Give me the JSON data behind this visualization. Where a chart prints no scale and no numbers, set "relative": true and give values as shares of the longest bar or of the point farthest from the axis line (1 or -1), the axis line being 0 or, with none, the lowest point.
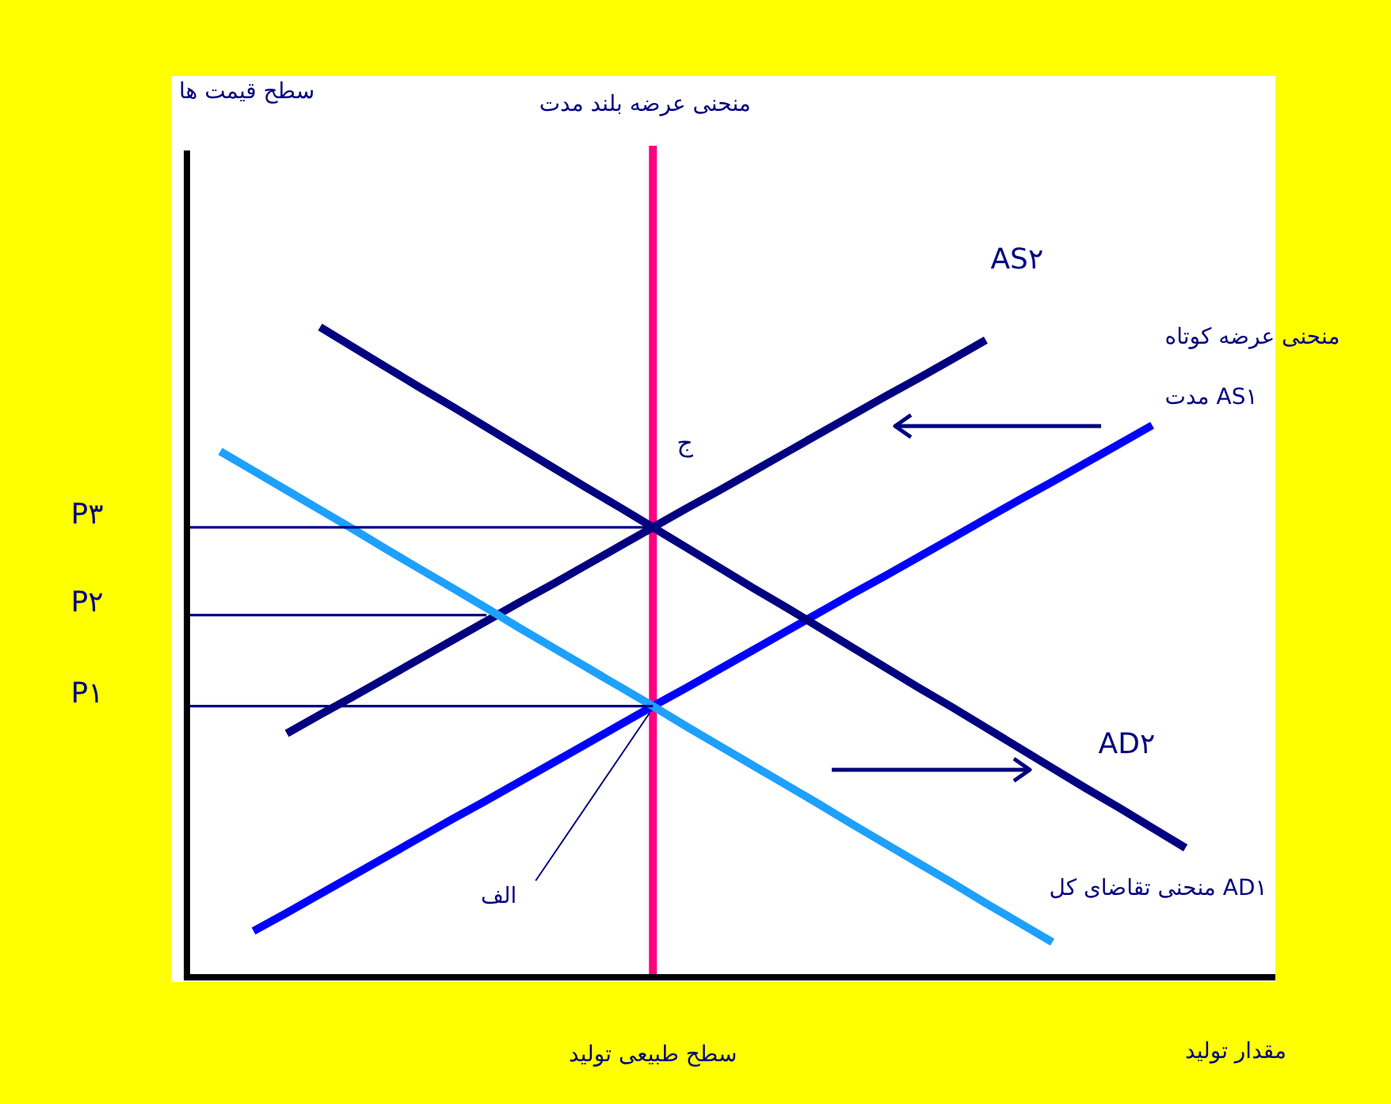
{
  "chart_data": {
    "type": "line",
    "relative": true,
    "xlabel": "مقدار تولید",
    "categories": [
      null,
      null,
      null,
      null,
      null,
      null,
      null,
      null,
      null,
      null,
      null,
      null,
      null,
      null,
      null,
      null,
      null,
      null,
      null,
      null,
      null,
      null,
      null,
      null,
      null,
      null,
      null,
      null,
      null,
      null,
      null,
      null,
      null
    ],
    "series": [
      {
        "name": "AS۲",
        "color": "#000080",
        "values": [
          null,
          null,
          null,
          0.375,
          0.404,
          0.432,
          0.461,
          0.49,
          0.519,
          0.548,
          0.577,
          0.605,
          0.634,
          0.663,
          0.692,
          0.721,
          0.749,
          0.778,
          0.807,
          0.836,
          0.865,
          0.894,
          0.922,
          0.951,
          0.98,
          null,
          null,
          null,
          null,
          null,
          null,
          null,
          null
        ]
      },
      {
        "name": "منحنی عرضه کوتاه مدت AS۱",
        "color": "#0000ff",
        "values": [
          null,
          null,
          0.071,
          0.099,
          0.128,
          0.157,
          0.186,
          0.215,
          0.244,
          0.272,
          0.301,
          0.33,
          0.359,
          0.388,
          0.417,
          0.445,
          0.474,
          0.503,
          0.532,
          0.561,
          0.59,
          0.618,
          0.647,
          0.676,
          0.705,
          0.734,
          0.762,
          0.791,
          0.82,
          0.849,
          null,
          null,
          null
        ]
      },
      {
        "name": "AD۲",
        "color": "#000080",
        "values": [
          null,
          null,
          null,
          null,
          1,
          0.969,
          0.938,
          0.907,
          0.877,
          0.846,
          0.815,
          0.784,
          0.753,
          0.723,
          0.692,
          0.661,
          0.63,
          0.599,
          0.569,
          0.538,
          0.507,
          0.476,
          0.445,
          0.415,
          0.384,
          0.353,
          0.322,
          0.291,
          0.261,
          0.23,
          0.199,
          null,
          null
        ]
      },
      {
        "name": "منحنی تقاضای کل AD۱",
        "color": "#1ea0ff",
        "values": [
          null,
          0.809,
          0.779,
          0.749,
          0.719,
          0.689,
          0.658,
          0.628,
          0.598,
          0.568,
          0.537,
          0.507,
          0.477,
          0.447,
          0.417,
          0.386,
          0.356,
          0.326,
          0.296,
          0.266,
          0.235,
          0.205,
          0.175,
          0.145,
          0.114,
          0.084,
          0.054,
          null,
          null,
          null,
          null,
          null,
          null
        ]
      },
      {
        "name": "P۳",
        "color": "#000080",
        "values": [
          0.692,
          0.692,
          0.692,
          0.692,
          0.692,
          0.692,
          0.692,
          0.692,
          0.692,
          0.692,
          0.692,
          0.692,
          0.692,
          0.692,
          0.692,
          null,
          null,
          null,
          null,
          null,
          null,
          null,
          null,
          null,
          null,
          null,
          null,
          null,
          null,
          null,
          null,
          null,
          null
        ]
      },
      {
        "name": "P۲",
        "color": "#000080",
        "values": [
          0.557,
          0.557,
          0.557,
          0.557,
          0.557,
          0.557,
          0.557,
          0.557,
          0.557,
          0.557,
          null,
          null,
          null,
          null,
          null,
          null,
          null,
          null,
          null,
          null,
          null,
          null,
          null,
          null,
          null,
          null,
          null,
          null,
          null,
          null,
          null,
          null,
          null
        ]
      },
      {
        "name": "P۱",
        "color": "#000080",
        "values": [
          0.417,
          0.417,
          0.417,
          0.417,
          0.417,
          0.417,
          0.417,
          0.417,
          0.417,
          0.417,
          0.417,
          0.417,
          0.417,
          0.417,
          0.417,
          null,
          null,
          null,
          null,
          null,
          null,
          null,
          null,
          null,
          null,
          null,
          null,
          null,
          null,
          null,
          null,
          null,
          null
        ]
      }
    ],
    "annotations": [
      "سطح قیمت ها",
      "منحنی عرضه بلند مدت",
      "ج",
      "الف",
      "سطح طبیعی تولید"
    ]
  }
}
